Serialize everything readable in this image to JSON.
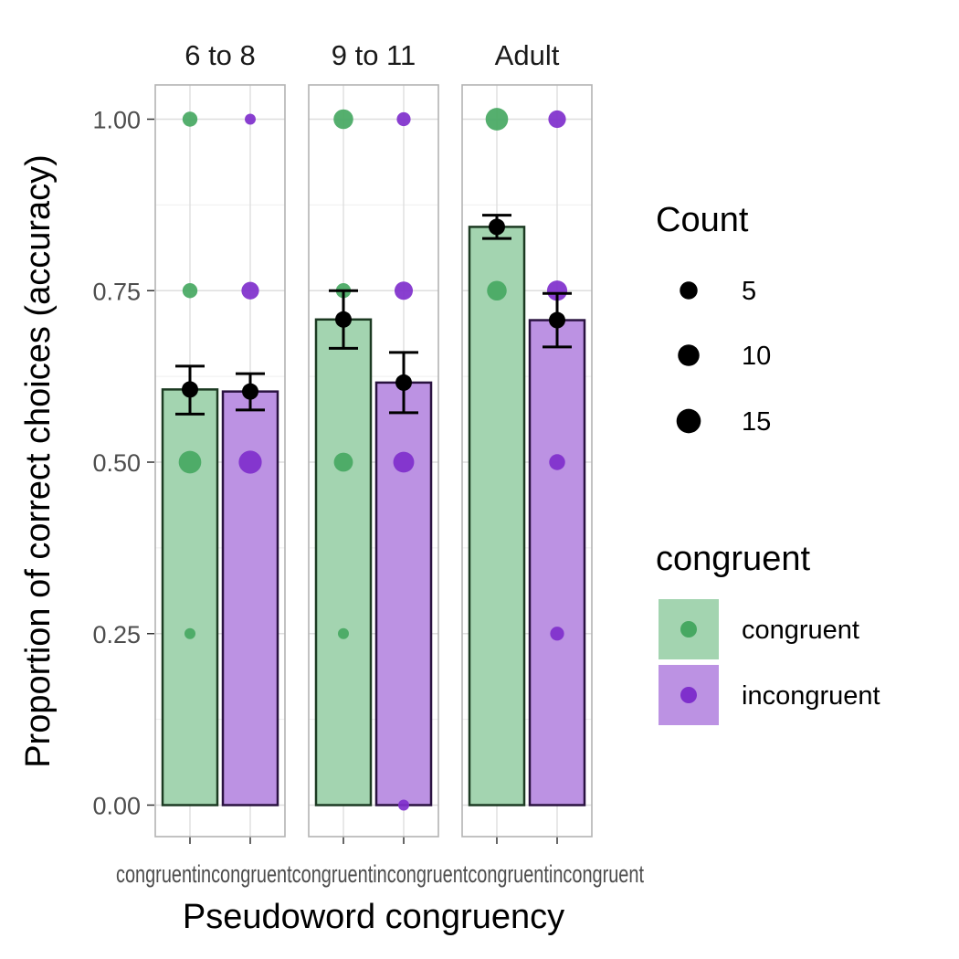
{
  "colors": {
    "congruent": "#47a862",
    "incongruent": "#7f2fcc",
    "bar_fill_congruent": "#a3d4b0",
    "bar_fill_incongruent": "#bc92e3",
    "bar_stroke_congruent": "#1c3a22",
    "bar_stroke_incongruent": "#2a1240",
    "mean_point": "#000000",
    "panel_border": "#b3b3b3",
    "grid_major": "#dedede",
    "grid_minor": "#efefef"
  },
  "chart_data": {
    "type": "bar",
    "xlabel": "Pseudoword congruency",
    "ylabel": "Proportion of correct choices (accuracy)",
    "ylim": [
      -0.045,
      1.045
    ],
    "y_ticks": [
      0,
      0.25,
      0.5,
      0.75,
      1
    ],
    "y_tick_labels": [
      "0.00",
      "0.25",
      "0.50",
      "0.75",
      "1.00"
    ],
    "grid": true,
    "categories": [
      "congruent",
      "incongruent"
    ],
    "panels": [
      {
        "label": "6 to 8",
        "bars": [
          {
            "category": "congruent",
            "mean": 0.606,
            "ci_low": 0.57,
            "ci_high": 0.64,
            "points": [
              {
                "y": 1.0,
                "count": 4
              },
              {
                "y": 0.75,
                "count": 4
              },
              {
                "y": 0.5,
                "count": 15
              },
              {
                "y": 0.25,
                "count": 1
              }
            ]
          },
          {
            "category": "incongruent",
            "mean": 0.603,
            "ci_low": 0.576,
            "ci_high": 0.629,
            "points": [
              {
                "y": 1.0,
                "count": 1
              },
              {
                "y": 0.75,
                "count": 7
              },
              {
                "y": 0.5,
                "count": 16
              }
            ]
          }
        ]
      },
      {
        "label": "9 to 11",
        "bars": [
          {
            "category": "congruent",
            "mean": 0.708,
            "ci_low": 0.666,
            "ci_high": 0.75,
            "points": [
              {
                "y": 1.0,
                "count": 10
              },
              {
                "y": 0.75,
                "count": 4
              },
              {
                "y": 0.5,
                "count": 9
              },
              {
                "y": 0.25,
                "count": 1
              }
            ]
          },
          {
            "category": "incongruent",
            "mean": 0.616,
            "ci_low": 0.572,
            "ci_high": 0.66,
            "points": [
              {
                "y": 1.0,
                "count": 3
              },
              {
                "y": 0.75,
                "count": 8
              },
              {
                "y": 0.5,
                "count": 12
              },
              {
                "y": 0.0,
                "count": 1
              }
            ]
          }
        ]
      },
      {
        "label": "Adult",
        "bars": [
          {
            "category": "congruent",
            "mean": 0.843,
            "ci_low": 0.826,
            "ci_high": 0.86,
            "points": [
              {
                "y": 1.0,
                "count": 15
              },
              {
                "y": 0.75,
                "count": 10
              }
            ]
          },
          {
            "category": "incongruent",
            "mean": 0.707,
            "ci_low": 0.668,
            "ci_high": 0.746,
            "points": [
              {
                "y": 1.0,
                "count": 7
              },
              {
                "y": 0.75,
                "count": 11
              },
              {
                "y": 0.5,
                "count": 5
              },
              {
                "y": 0.25,
                "count": 3
              }
            ]
          }
        ]
      }
    ],
    "x_tick_labels_overlapping": "congruentincongruentcongruentincongruentcongruentincongruent",
    "legend": {
      "placement": "right",
      "count": {
        "title": "Count",
        "entries": [
          5,
          10,
          15
        ],
        "entry_labels": [
          "5",
          "10",
          "15"
        ]
      },
      "fill": {
        "title": "congruent",
        "entries": [
          "congruent",
          "incongruent"
        ]
      }
    }
  }
}
